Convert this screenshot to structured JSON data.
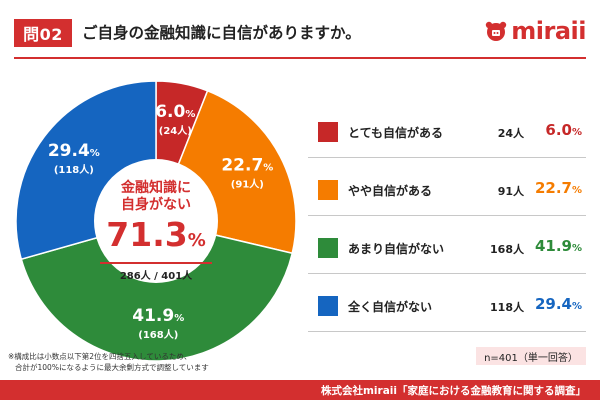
{
  "header": {
    "question_badge": "問02",
    "question_text": "ご自身の金融知識に自信がありますか。",
    "logo_text": "miraii"
  },
  "chart_data": {
    "type": "pie",
    "donut": true,
    "start_angle_deg": 0,
    "direction": "clockwise",
    "categories": [
      "とても自信がある",
      "やや自信がある",
      "あまり自信がない",
      "全く自信がない"
    ],
    "values": [
      6.0,
      22.7,
      41.9,
      29.4
    ],
    "counts": [
      24,
      91,
      168,
      118
    ],
    "value_labels": [
      "6.0",
      "22.7",
      "41.9",
      "29.4"
    ],
    "count_labels": [
      "(24人)",
      "(91人)",
      "(168人)",
      "(118人)"
    ],
    "colors": [
      "#c62828",
      "#f57c00",
      "#2e8b3a",
      "#1565c0"
    ],
    "unit": "%",
    "center": {
      "line1": "金融知識に",
      "line2": "自身がない",
      "value": "71.3",
      "unit": "%",
      "count": "286人 / 401人"
    },
    "legend": [
      {
        "label": "とても自信がある",
        "count": "24人",
        "pct": "6.0",
        "unit": "%",
        "color": "#c62828"
      },
      {
        "label": "やや自信がある",
        "count": "91人",
        "pct": "22.7",
        "unit": "%",
        "color": "#f57c00"
      },
      {
        "label": "あまり自信がない",
        "count": "168人",
        "pct": "41.9",
        "unit": "%",
        "color": "#2e8b3a"
      },
      {
        "label": "全く自信がない",
        "count": "118人",
        "pct": "29.4",
        "unit": "%",
        "color": "#1565c0"
      }
    ]
  },
  "footnote": {
    "line1": "※構成比は小数点以下第2位を四捨五入しているため、",
    "line2": "合計が100%になるように最大余剰方式で調整しています"
  },
  "sample": "n=401（単一回答）",
  "source": "株式会社miraii「家庭における金融教育に関する調査」"
}
